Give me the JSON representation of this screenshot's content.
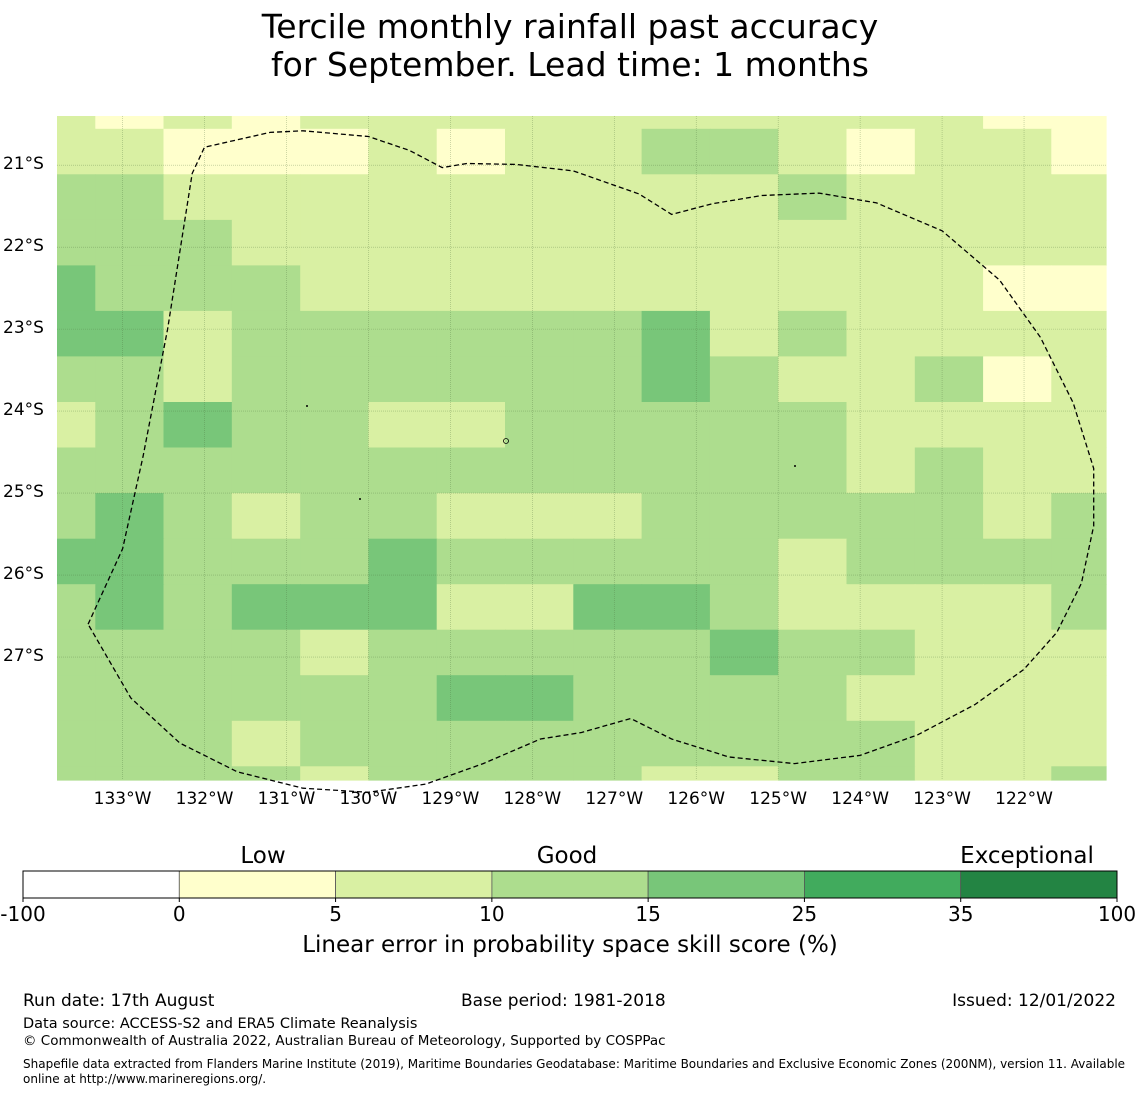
{
  "title_line1": "Tercile monthly rainfall past accuracy",
  "title_line2": "for September. Lead time: 1 months",
  "map": {
    "lon_range": [
      -133.8,
      -121.0
    ],
    "lat_range": [
      -28.5,
      -20.4
    ],
    "lat_labels": [
      "21°S",
      "22°S",
      "23°S",
      "24°S",
      "25°S",
      "26°S",
      "27°S"
    ],
    "lat_values": [
      -21,
      -22,
      -23,
      -24,
      -25,
      -26,
      -27
    ],
    "lon_labels": [
      "133°W",
      "132°W",
      "131°W",
      "130°W",
      "129°W",
      "128°W",
      "127°W",
      "126°W",
      "125°W",
      "124°W",
      "123°W",
      "122°W"
    ],
    "lon_values": [
      -133,
      -132,
      -131,
      -130,
      -129,
      -128,
      -127,
      -126,
      -125,
      -124,
      -123,
      -122
    ],
    "class_colors": [
      "#ffffcc",
      "#d9f0a3",
      "#addd8e",
      "#78c679",
      "#41ab5d",
      "#238443"
    ],
    "grid_lons": [
      -133.8,
      -133.333,
      -132.5,
      -131.667,
      -130.833,
      -130.0,
      -129.167,
      -128.333,
      -127.5,
      -126.667,
      -125.833,
      -125.0,
      -124.167,
      -123.333,
      -122.5,
      -121.667,
      -121.0
    ],
    "grid_lats": [
      -20.4,
      -20.556,
      -21.111,
      -21.667,
      -22.222,
      -22.778,
      -23.333,
      -23.889,
      -24.444,
      -25.0,
      -25.556,
      -26.111,
      -26.667,
      -27.222,
      -27.778,
      -28.333,
      -28.5
    ],
    "grid_classes": [
      [
        1,
        0,
        1,
        0,
        1,
        1,
        1,
        1,
        1,
        1,
        1,
        1,
        1,
        1,
        0,
        0
      ],
      [
        1,
        1,
        0,
        0,
        0,
        1,
        0,
        1,
        1,
        2,
        2,
        1,
        0,
        1,
        1,
        0
      ],
      [
        2,
        2,
        1,
        1,
        1,
        1,
        1,
        1,
        1,
        1,
        1,
        2,
        1,
        1,
        1,
        1
      ],
      [
        2,
        2,
        2,
        1,
        1,
        1,
        1,
        1,
        1,
        1,
        1,
        1,
        1,
        1,
        1,
        1
      ],
      [
        3,
        2,
        2,
        2,
        1,
        1,
        1,
        1,
        1,
        1,
        1,
        1,
        1,
        1,
        0,
        0
      ],
      [
        3,
        3,
        1,
        2,
        2,
        2,
        2,
        2,
        2,
        3,
        1,
        2,
        1,
        1,
        1,
        1
      ],
      [
        2,
        2,
        1,
        2,
        2,
        2,
        2,
        2,
        2,
        3,
        2,
        1,
        1,
        2,
        0,
        1
      ],
      [
        1,
        2,
        3,
        2,
        2,
        1,
        1,
        2,
        2,
        2,
        2,
        2,
        1,
        1,
        1,
        1
      ],
      [
        2,
        2,
        2,
        2,
        2,
        2,
        2,
        2,
        2,
        2,
        2,
        2,
        1,
        2,
        1,
        1
      ],
      [
        2,
        3,
        2,
        1,
        2,
        2,
        1,
        1,
        1,
        2,
        2,
        2,
        2,
        2,
        1,
        2
      ],
      [
        3,
        3,
        2,
        2,
        2,
        3,
        2,
        2,
        2,
        2,
        2,
        1,
        2,
        2,
        2,
        2
      ],
      [
        2,
        3,
        2,
        3,
        3,
        3,
        1,
        1,
        3,
        3,
        2,
        1,
        1,
        1,
        1,
        2
      ],
      [
        2,
        2,
        2,
        2,
        1,
        2,
        2,
        2,
        2,
        2,
        3,
        2,
        2,
        1,
        1,
        1
      ],
      [
        2,
        2,
        2,
        2,
        2,
        2,
        3,
        3,
        2,
        2,
        2,
        2,
        1,
        1,
        1,
        1
      ],
      [
        2,
        2,
        2,
        1,
        2,
        2,
        2,
        2,
        2,
        2,
        2,
        2,
        2,
        1,
        1,
        1
      ],
      [
        2,
        2,
        2,
        2,
        1,
        2,
        2,
        2,
        2,
        1,
        1,
        2,
        2,
        1,
        1,
        2
      ]
    ],
    "boundary": [
      [
        -133.42,
        -26.6
      ],
      [
        -133.0,
        -25.68
      ],
      [
        -132.75,
        -24.55
      ],
      [
        -132.45,
        -23.0
      ],
      [
        -132.15,
        -21.1
      ],
      [
        -132.0,
        -20.78
      ],
      [
        -131.2,
        -20.6
      ],
      [
        -130.8,
        -20.58
      ],
      [
        -130.0,
        -20.65
      ],
      [
        -129.5,
        -20.82
      ],
      [
        -129.1,
        -21.03
      ],
      [
        -128.8,
        -20.98
      ],
      [
        -128.2,
        -20.99
      ],
      [
        -127.5,
        -21.07
      ],
      [
        -126.7,
        -21.35
      ],
      [
        -126.3,
        -21.6
      ],
      [
        -125.8,
        -21.47
      ],
      [
        -125.2,
        -21.37
      ],
      [
        -124.5,
        -21.34
      ],
      [
        -123.8,
        -21.46
      ],
      [
        -123.0,
        -21.8
      ],
      [
        -122.3,
        -22.4
      ],
      [
        -121.8,
        -23.1
      ],
      [
        -121.4,
        -23.9
      ],
      [
        -121.15,
        -24.7
      ],
      [
        -121.15,
        -25.4
      ],
      [
        -121.3,
        -26.1
      ],
      [
        -121.6,
        -26.7
      ],
      [
        -122.0,
        -27.15
      ],
      [
        -122.6,
        -27.58
      ],
      [
        -123.3,
        -27.95
      ],
      [
        -124.0,
        -28.2
      ],
      [
        -124.8,
        -28.3
      ],
      [
        -125.6,
        -28.22
      ],
      [
        -126.3,
        -28.0
      ],
      [
        -126.8,
        -27.75
      ],
      [
        -127.4,
        -27.92
      ],
      [
        -127.9,
        -28.0
      ],
      [
        -128.6,
        -28.3
      ],
      [
        -129.3,
        -28.55
      ],
      [
        -130.0,
        -28.65
      ],
      [
        -130.8,
        -28.6
      ],
      [
        -131.6,
        -28.4
      ],
      [
        -132.3,
        -28.05
      ],
      [
        -132.9,
        -27.5
      ],
      [
        -133.42,
        -26.6
      ]
    ]
  },
  "colorbar": {
    "group_labels": [
      "Low",
      "Good",
      "Exceptional"
    ],
    "ticks": [
      "-100",
      "0",
      "5",
      "10",
      "15",
      "25",
      "35",
      "100"
    ],
    "colors": [
      "#ffffff",
      "#ffffcc",
      "#d9f0a3",
      "#addd8e",
      "#78c679",
      "#41ab5d",
      "#238443"
    ],
    "title": "Linear error in probability space skill score (%)"
  },
  "footer": {
    "run_date": "Run date: 17th August",
    "base_period": "Base period: 1981-2018",
    "issued": "Issued: 12/01/2022",
    "data_source": "Data source: ACCESS-S2 and ERA5 Climate Reanalysis",
    "copyright": "© Commonwealth of Australia 2022, Australian Bureau of Meteorology, Supported by COSPPac",
    "shapefile": "Shapefile data extracted from Flanders Marine Institute (2019), Maritime Boundaries Geodatabase: Maritime Boundaries and Exclusive Economic Zones (200NM), version 11. Available online at http://www.marineregions.org/."
  }
}
